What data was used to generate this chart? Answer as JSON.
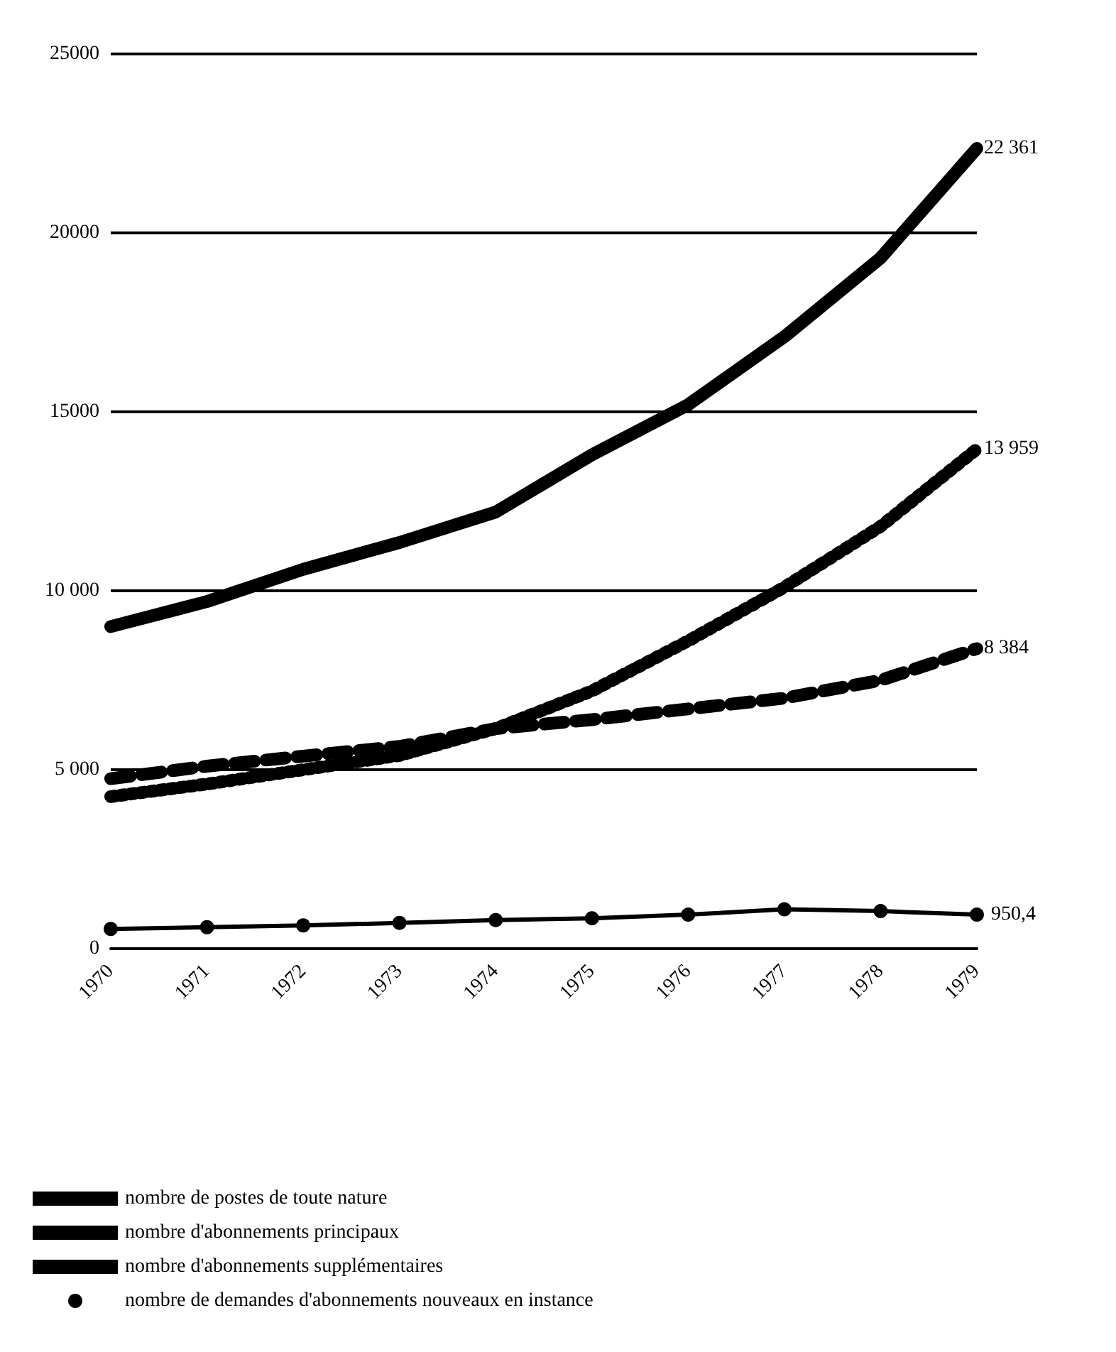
{
  "chart_data": {
    "type": "line",
    "categories": [
      "1970",
      "1971",
      "1972",
      "1973",
      "1974",
      "1975",
      "1976",
      "1977",
      "1978",
      "1979"
    ],
    "series": [
      {
        "name": "nombre de postes de toute nature",
        "color": "#000000",
        "line_style": "solid",
        "marker": "none",
        "values": [
          9000,
          9700,
          10600,
          11350,
          12200,
          13800,
          15200,
          17100,
          19300,
          22361
        ],
        "value_labels": [
          null,
          null,
          null,
          null,
          null,
          null,
          null,
          null,
          null,
          "22 361"
        ]
      },
      {
        "name": "nombre d'abonnements principaux",
        "color": "#000000",
        "line_style": "dashed",
        "marker": "none",
        "values": [
          4750,
          5100,
          5380,
          5650,
          6150,
          6400,
          6700,
          7000,
          7500,
          8384
        ],
        "value_labels": [
          null,
          null,
          null,
          null,
          null,
          null,
          null,
          null,
          null,
          "8 384"
        ]
      },
      {
        "name": "nombre d'abonnements supplémentaires",
        "color": "#000000",
        "line_style": "dotted",
        "marker": "none",
        "values": [
          4250,
          4600,
          5000,
          5400,
          6150,
          7200,
          8600,
          10100,
          11800,
          13959
        ],
        "value_labels": [
          null,
          null,
          null,
          null,
          null,
          null,
          null,
          null,
          null,
          "13 959"
        ]
      },
      {
        "name": "nombre de demandes d'abonnements nouveaux en instance",
        "color": "#000000",
        "line_style": "solid",
        "marker": "circle",
        "values": [
          550,
          600,
          650,
          720,
          800,
          850,
          950,
          1100,
          1050,
          950.4
        ],
        "value_labels": [
          null,
          null,
          null,
          null,
          null,
          null,
          null,
          null,
          null,
          "950,4"
        ]
      }
    ],
    "ylim": [
      0,
      25000
    ],
    "yticks": [
      0,
      {
        "value": 5000,
        "label": "5 000"
      },
      {
        "value": 10000,
        "label": "10 000"
      },
      15000,
      20000,
      25000
    ],
    "grid": "y",
    "legend": "bottom"
  }
}
